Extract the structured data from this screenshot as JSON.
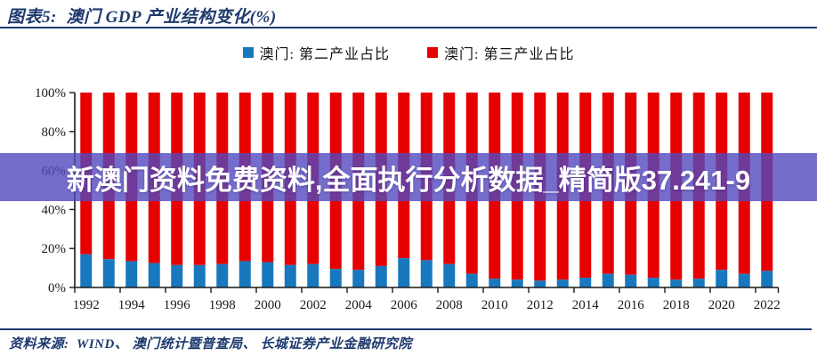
{
  "header": {
    "title": "图表5:  澳门 GDP 产业结构变化(%)"
  },
  "banner": {
    "text": "新澳门资料免费资料,全面执行分析数据_精简版37.241-9"
  },
  "footer": {
    "source": "资料来源:  WIND、 澳门统计暨普查局、 长城证券产业金融研究院"
  },
  "colors": {
    "secondary_blue": "#1878be",
    "tertiary_red": "#e60000",
    "navy": "#1e3a6e",
    "axis": "#1a1a1a",
    "banner_overlay": "rgba(83,73,190,0.80)"
  },
  "chart_data": {
    "type": "bar",
    "stacked": true,
    "title": "澳门 GDP 产业结构变化(%)",
    "legend_position": "top",
    "grid": false,
    "ylim": [
      0,
      100
    ],
    "ytick_values": [
      0,
      20,
      40,
      60,
      80,
      100
    ],
    "ytick_labels": [
      "0%",
      "20%",
      "40%",
      "60%",
      "80%",
      "100%"
    ],
    "categories": [
      1992,
      1993,
      1994,
      1995,
      1996,
      1997,
      1998,
      1999,
      2000,
      2001,
      2002,
      2003,
      2004,
      2005,
      2006,
      2007,
      2008,
      2009,
      2010,
      2011,
      2012,
      2013,
      2014,
      2015,
      2016,
      2017,
      2018,
      2019,
      2020,
      2021,
      2022
    ],
    "xtick_labels": [
      "1992",
      "1994",
      "1996",
      "1998",
      "2000",
      "2002",
      "2004",
      "2006",
      "2008",
      "2010",
      "2012",
      "2014",
      "2016",
      "2018",
      "2020",
      "2022"
    ],
    "series": [
      {
        "name": "澳门: 第二产业占比",
        "color": "#1878be",
        "values": [
          17,
          14.5,
          13.5,
          12.5,
          11.5,
          11.5,
          12,
          13.5,
          13,
          11.5,
          12,
          9.5,
          9,
          11,
          15,
          14,
          12,
          7,
          4.5,
          4,
          3.5,
          4,
          5,
          7,
          6.5,
          5,
          4,
          4.5,
          9,
          7,
          8.5
        ]
      },
      {
        "name": "澳门: 第三产业占比",
        "color": "#e60000",
        "values": [
          83,
          85.5,
          86.5,
          87.5,
          88.5,
          88.5,
          88,
          86.5,
          87,
          88.5,
          88,
          90.5,
          91,
          89,
          85,
          86,
          88,
          93,
          95.5,
          96,
          96.5,
          96,
          95,
          93,
          93.5,
          95,
          96,
          95.5,
          91,
          93,
          91.5
        ]
      }
    ]
  }
}
